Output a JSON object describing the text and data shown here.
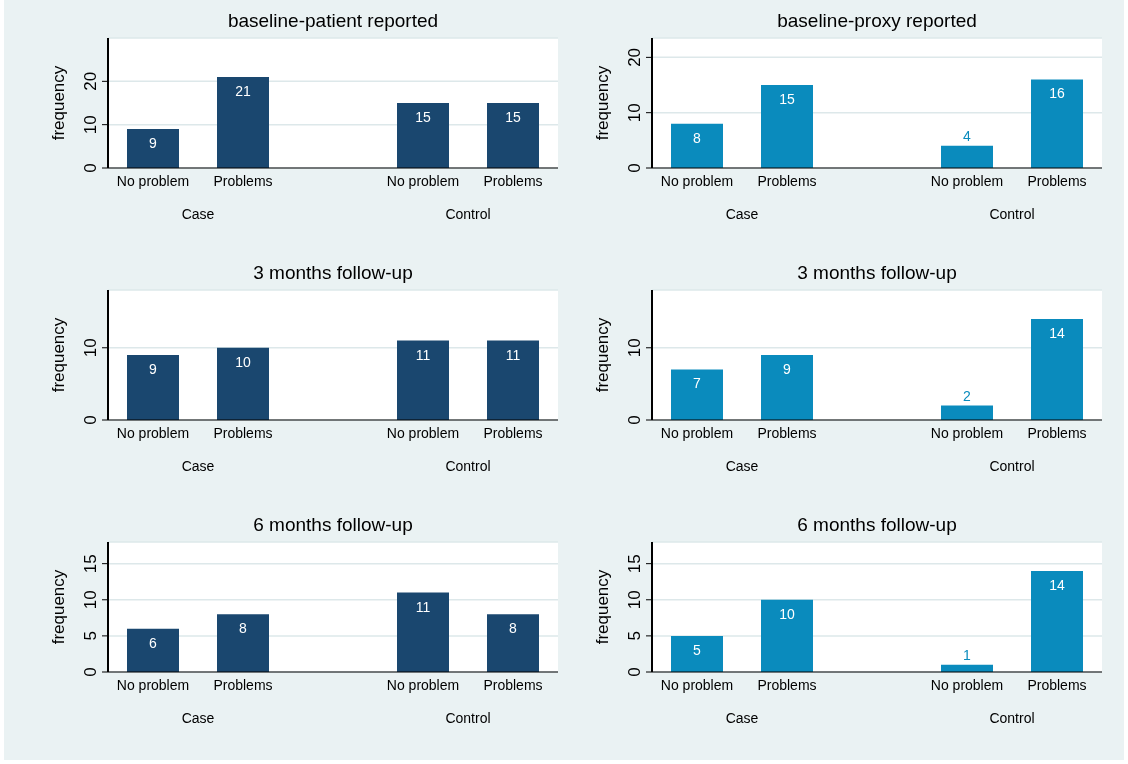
{
  "chart_data": [
    {
      "type": "bar",
      "title": "baseline-patient reported",
      "ylabel": "frequency",
      "categories": [
        "No problem",
        "Problems",
        null,
        "No problem",
        "Problems"
      ],
      "values": [
        9,
        21,
        null,
        15,
        15
      ],
      "color": "#1a476f",
      "data_labels": true,
      "annotations": [
        "Case",
        "Control"
      ],
      "ylim": [
        0,
        30
      ],
      "yticks": [
        0,
        10,
        20
      ],
      "grid": "y"
    },
    {
      "type": "bar",
      "title": "baseline-proxy reported",
      "ylabel": "frequency",
      "categories": [
        "No problem",
        "Problems",
        null,
        "No problem",
        "Problems"
      ],
      "values": [
        8,
        15,
        null,
        4,
        16
      ],
      "color": "#0a8bbd",
      "data_labels": true,
      "annotations": [
        "Case",
        "Control"
      ],
      "ylim": [
        0,
        23.5
      ],
      "yticks": [
        0,
        10,
        20
      ],
      "grid": "y"
    },
    {
      "type": "bar",
      "title": "3 months follow-up",
      "ylabel": "frequency",
      "categories": [
        "No problem",
        "Problems",
        null,
        "No problem",
        "Problems"
      ],
      "values": [
        9,
        10,
        null,
        11,
        11
      ],
      "color": "#1a476f",
      "data_labels": true,
      "annotations": [
        "Case",
        "Control"
      ],
      "ylim": [
        0,
        18
      ],
      "yticks": [
        0,
        10
      ],
      "grid": "y"
    },
    {
      "type": "bar",
      "title": "3 months follow-up",
      "ylabel": "frequency",
      "categories": [
        "No problem",
        "Problems",
        null,
        "No problem",
        "Problems"
      ],
      "values": [
        7,
        9,
        null,
        2,
        14
      ],
      "color": "#0a8bbd",
      "data_labels": true,
      "annotations": [
        "Case",
        "Control"
      ],
      "ylim": [
        0,
        18
      ],
      "yticks": [
        0,
        10
      ],
      "grid": "y"
    },
    {
      "type": "bar",
      "title": "6 months follow-up",
      "ylabel": "frequency",
      "categories": [
        "No problem",
        "Problems",
        null,
        "No problem",
        "Problems"
      ],
      "values": [
        6,
        8,
        null,
        11,
        8
      ],
      "color": "#1a476f",
      "data_labels": true,
      "annotations": [
        "Case",
        "Control"
      ],
      "ylim": [
        0,
        18
      ],
      "yticks": [
        0,
        5,
        10,
        15
      ],
      "grid": "y"
    },
    {
      "type": "bar",
      "title": "6 months follow-up",
      "ylabel": "frequency",
      "categories": [
        "No problem",
        "Problems",
        null,
        "No problem",
        "Problems"
      ],
      "values": [
        5,
        10,
        null,
        1,
        14
      ],
      "color": "#0a8bbd",
      "data_labels": true,
      "annotations": [
        "Case",
        "Control"
      ],
      "ylim": [
        0,
        18
      ],
      "yticks": [
        0,
        5,
        10,
        15
      ],
      "grid": "y"
    }
  ]
}
